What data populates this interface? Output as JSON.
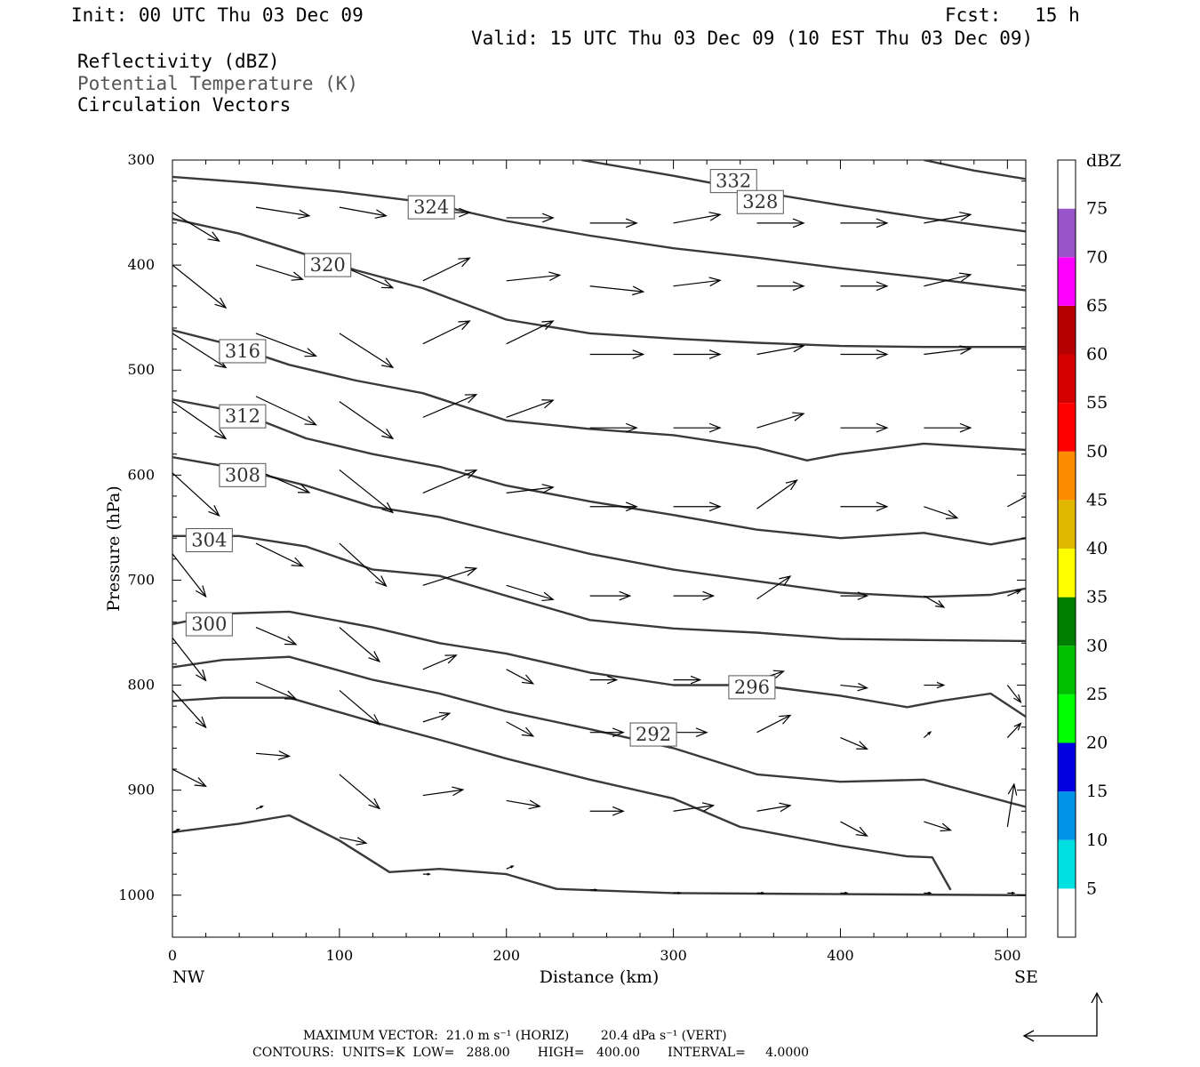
{
  "header": {
    "init": "Init: 00 UTC Thu 03 Dec 09",
    "fcst": "Fcst:   15 h",
    "valid": "Valid: 15 UTC Thu 03 Dec 09 (10 EST Thu 03 Dec 09)",
    "fields": [
      "Reflectivity (dBZ)",
      "Potential Temperature (K)",
      "Circulation Vectors"
    ]
  },
  "footer": {
    "max_vector": "MAXIMUM VECTOR:  21.0 m s⁻¹ (HORIZ)        20.4 dPa s⁻¹ (VERT)",
    "contours": "CONTOURS:  UNITS=K  LOW=   288.00       HIGH=   400.00       INTERVAL=     4.0000"
  },
  "colorbar": {
    "unit": "dBZ",
    "levels": [
      5,
      10,
      15,
      20,
      25,
      30,
      35,
      40,
      45,
      50,
      55,
      60,
      65,
      70,
      75
    ],
    "colors": [
      "#ffffff",
      "#00e0e0",
      "#0095e8",
      "#0000e0",
      "#00ff00",
      "#00c000",
      "#008000",
      "#ffff00",
      "#e0b800",
      "#ff8c00",
      "#ff0000",
      "#d40000",
      "#b40000",
      "#ff00ff",
      "#9955cc",
      "#ffffff"
    ]
  },
  "chart_data": {
    "type": "line",
    "title": "Reflectivity (dBZ), Potential Temperature (K), Circulation Vectors",
    "xlabel": "Distance (km)",
    "ylabel": "Pressure (hPa)",
    "xlim": [
      0,
      511
    ],
    "ylim": [
      1040,
      300
    ],
    "x_ticks": [
      0,
      100,
      200,
      300,
      400,
      500
    ],
    "y_ticks": [
      300,
      400,
      500,
      600,
      700,
      800,
      900,
      1000
    ],
    "x_end_labels": {
      "left": "NW",
      "right": "SE"
    },
    "contours": [
      {
        "level": "332",
        "label_at": [
          336,
          320
        ],
        "points": [
          [
            245,
            300
          ],
          [
            300,
            315
          ],
          [
            350,
            330
          ],
          [
            400,
            343
          ],
          [
            450,
            355
          ],
          [
            511,
            368
          ]
        ]
      },
      {
        "level": "",
        "label_at": null,
        "points": [
          [
            450,
            300
          ],
          [
            480,
            310
          ],
          [
            511,
            318
          ]
        ]
      },
      {
        "level": "328",
        "label_at": [
          352,
          340
        ],
        "points": [
          [
            0,
            316
          ],
          [
            50,
            322
          ],
          [
            100,
            330
          ],
          [
            150,
            340
          ],
          [
            200,
            358
          ],
          [
            250,
            372
          ],
          [
            300,
            384
          ],
          [
            350,
            393
          ],
          [
            400,
            403
          ],
          [
            450,
            412
          ],
          [
            511,
            424
          ]
        ]
      },
      {
        "level": "324",
        "label_at": [
          155,
          345
        ],
        "points": [
          [
            0,
            356
          ],
          [
            40,
            370
          ],
          [
            80,
            390
          ],
          [
            110,
            405
          ],
          [
            150,
            422
          ],
          [
            200,
            452
          ],
          [
            250,
            465
          ],
          [
            300,
            470
          ],
          [
            350,
            474
          ],
          [
            400,
            477
          ],
          [
            450,
            478
          ],
          [
            511,
            478
          ]
        ]
      },
      {
        "level": "320",
        "label_at": [
          93,
          400
        ],
        "points": [
          [
            0,
            462
          ],
          [
            30,
            474
          ],
          [
            70,
            495
          ],
          [
            110,
            510
          ],
          [
            150,
            522
          ],
          [
            200,
            548
          ],
          [
            250,
            556
          ],
          [
            300,
            562
          ],
          [
            350,
            574
          ],
          [
            380,
            586
          ],
          [
            400,
            580
          ],
          [
            450,
            570
          ],
          [
            511,
            576
          ]
        ]
      },
      {
        "level": "316",
        "label_at": [
          42,
          482
        ],
        "points": [
          [
            0,
            528
          ],
          [
            40,
            540
          ],
          [
            80,
            565
          ],
          [
            120,
            580
          ],
          [
            160,
            592
          ],
          [
            200,
            610
          ],
          [
            250,
            625
          ],
          [
            300,
            638
          ],
          [
            350,
            652
          ],
          [
            400,
            660
          ],
          [
            450,
            655
          ],
          [
            490,
            666
          ],
          [
            511,
            660
          ]
        ]
      },
      {
        "level": "312",
        "label_at": [
          42,
          544
        ],
        "points": [
          [
            0,
            583
          ],
          [
            40,
            594
          ],
          [
            80,
            610
          ],
          [
            120,
            630
          ],
          [
            160,
            640
          ],
          [
            200,
            656
          ],
          [
            250,
            675
          ],
          [
            300,
            690
          ],
          [
            350,
            701
          ],
          [
            400,
            712
          ],
          [
            450,
            716
          ],
          [
            490,
            714
          ],
          [
            511,
            708
          ]
        ]
      },
      {
        "level": "308",
        "label_at": [
          42,
          600
        ],
        "points": [
          [
            0,
            658
          ],
          [
            40,
            658
          ],
          [
            80,
            668
          ],
          [
            120,
            690
          ],
          [
            160,
            696
          ],
          [
            200,
            715
          ],
          [
            250,
            738
          ],
          [
            300,
            746
          ],
          [
            350,
            750
          ],
          [
            400,
            756
          ],
          [
            450,
            757
          ],
          [
            511,
            758
          ]
        ]
      },
      {
        "level": "304",
        "label_at": [
          22,
          662
        ],
        "points": [
          [
            0,
            742
          ],
          [
            30,
            732
          ],
          [
            70,
            730
          ],
          [
            120,
            745
          ],
          [
            160,
            760
          ],
          [
            200,
            770
          ],
          [
            250,
            788
          ],
          [
            300,
            800
          ],
          [
            350,
            800
          ],
          [
            400,
            810
          ],
          [
            440,
            821
          ],
          [
            460,
            815
          ],
          [
            490,
            808
          ],
          [
            511,
            830
          ]
        ]
      },
      {
        "level": "300",
        "label_at": [
          22,
          742
        ],
        "points": [
          [
            0,
            783
          ],
          [
            30,
            776
          ],
          [
            70,
            773
          ],
          [
            120,
            795
          ],
          [
            160,
            808
          ],
          [
            200,
            825
          ],
          [
            250,
            842
          ],
          [
            300,
            860
          ],
          [
            350,
            885
          ],
          [
            400,
            892
          ],
          [
            450,
            890
          ],
          [
            511,
            916
          ]
        ]
      },
      {
        "level": "296",
        "label_at": [
          347,
          802
        ],
        "points": [
          [
            0,
            815
          ],
          [
            30,
            812
          ],
          [
            70,
            812
          ],
          [
            120,
            835
          ],
          [
            160,
            852
          ],
          [
            200,
            870
          ],
          [
            250,
            890
          ],
          [
            300,
            908
          ],
          [
            340,
            935
          ],
          [
            400,
            953
          ],
          [
            440,
            963
          ],
          [
            455,
            964
          ],
          [
            466,
            995
          ]
        ]
      },
      {
        "level": "292",
        "label_at": [
          288,
          847
        ],
        "points": [
          [
            0,
            940
          ],
          [
            40,
            932
          ],
          [
            70,
            924
          ],
          [
            100,
            948
          ],
          [
            130,
            978
          ],
          [
            160,
            975
          ],
          [
            200,
            980
          ],
          [
            230,
            994
          ],
          [
            300,
            998
          ],
          [
            400,
            999
          ],
          [
            511,
            1000
          ]
        ]
      }
    ],
    "vectors": [
      {
        "x": 0,
        "p": 350,
        "u": 7,
        "w": 10
      },
      {
        "x": 50,
        "p": 345,
        "u": 8,
        "w": 3
      },
      {
        "x": 100,
        "p": 345,
        "u": 7,
        "w": 3
      },
      {
        "x": 150,
        "p": 350,
        "u": 7,
        "w": 0
      },
      {
        "x": 200,
        "p": 355,
        "u": 7,
        "w": 0
      },
      {
        "x": 250,
        "p": 360,
        "u": 7,
        "w": 0
      },
      {
        "x": 300,
        "p": 360,
        "u": 7,
        "w": -3
      },
      {
        "x": 350,
        "p": 360,
        "u": 7,
        "w": 0
      },
      {
        "x": 400,
        "p": 360,
        "u": 7,
        "w": 0
      },
      {
        "x": 450,
        "p": 360,
        "u": 7,
        "w": -3
      },
      {
        "x": 0,
        "p": 400,
        "u": 8,
        "w": 15
      },
      {
        "x": 50,
        "p": 400,
        "u": 7,
        "w": 5
      },
      {
        "x": 100,
        "p": 400,
        "u": 8,
        "w": 8
      },
      {
        "x": 150,
        "p": 415,
        "u": 7,
        "w": -8
      },
      {
        "x": 200,
        "p": 415,
        "u": 8,
        "w": -2
      },
      {
        "x": 250,
        "p": 420,
        "u": 8,
        "w": 2
      },
      {
        "x": 300,
        "p": 420,
        "u": 7,
        "w": -2
      },
      {
        "x": 350,
        "p": 420,
        "u": 7,
        "w": 0
      },
      {
        "x": 400,
        "p": 420,
        "u": 7,
        "w": 0
      },
      {
        "x": 450,
        "p": 420,
        "u": 7,
        "w": -4
      },
      {
        "x": 0,
        "p": 465,
        "u": 8,
        "w": 12
      },
      {
        "x": 50,
        "p": 465,
        "u": 9,
        "w": 8
      },
      {
        "x": 100,
        "p": 465,
        "u": 8,
        "w": 12
      },
      {
        "x": 150,
        "p": 475,
        "u": 7,
        "w": -8
      },
      {
        "x": 200,
        "p": 475,
        "u": 7,
        "w": -8
      },
      {
        "x": 250,
        "p": 485,
        "u": 8,
        "w": 0
      },
      {
        "x": 300,
        "p": 485,
        "u": 7,
        "w": 0
      },
      {
        "x": 350,
        "p": 485,
        "u": 7,
        "w": -3
      },
      {
        "x": 400,
        "p": 485,
        "u": 7,
        "w": 0
      },
      {
        "x": 450,
        "p": 485,
        "u": 7,
        "w": -2
      },
      {
        "x": 0,
        "p": 530,
        "u": 8,
        "w": 13
      },
      {
        "x": 50,
        "p": 525,
        "u": 9,
        "w": 10
      },
      {
        "x": 100,
        "p": 530,
        "u": 8,
        "w": 13
      },
      {
        "x": 150,
        "p": 545,
        "u": 8,
        "w": -8
      },
      {
        "x": 200,
        "p": 545,
        "u": 7,
        "w": -6
      },
      {
        "x": 250,
        "p": 555,
        "u": 7,
        "w": 0
      },
      {
        "x": 300,
        "p": 555,
        "u": 7,
        "w": 0
      },
      {
        "x": 350,
        "p": 555,
        "u": 7,
        "w": -5
      },
      {
        "x": 400,
        "p": 555,
        "u": 7,
        "w": 0
      },
      {
        "x": 450,
        "p": 555,
        "u": 7,
        "w": 0
      },
      {
        "x": 0,
        "p": 598,
        "u": 7,
        "w": 15
      },
      {
        "x": 50,
        "p": 595,
        "u": 8,
        "w": 8
      },
      {
        "x": 100,
        "p": 595,
        "u": 8,
        "w": 15
      },
      {
        "x": 150,
        "p": 617,
        "u": 8,
        "w": -8
      },
      {
        "x": 200,
        "p": 617,
        "u": 7,
        "w": -2
      },
      {
        "x": 250,
        "p": 630,
        "u": 7,
        "w": 0
      },
      {
        "x": 300,
        "p": 630,
        "u": 7,
        "w": 0
      },
      {
        "x": 350,
        "p": 632,
        "u": 6,
        "w": -10
      },
      {
        "x": 400,
        "p": 630,
        "u": 7,
        "w": 0
      },
      {
        "x": 450,
        "p": 630,
        "u": 5,
        "w": 4
      },
      {
        "x": 500,
        "p": 630,
        "u": 4,
        "w": -5
      },
      {
        "x": 0,
        "p": 675,
        "u": 5,
        "w": 15
      },
      {
        "x": 50,
        "p": 665,
        "u": 7,
        "w": 8
      },
      {
        "x": 100,
        "p": 665,
        "u": 7,
        "w": 15
      },
      {
        "x": 150,
        "p": 705,
        "u": 8,
        "w": -6
      },
      {
        "x": 200,
        "p": 705,
        "u": 7,
        "w": 5
      },
      {
        "x": 250,
        "p": 715,
        "u": 6,
        "w": 0
      },
      {
        "x": 300,
        "p": 715,
        "u": 6,
        "w": 0
      },
      {
        "x": 350,
        "p": 718,
        "u": 5,
        "w": -8
      },
      {
        "x": 400,
        "p": 715,
        "u": 4,
        "w": 0
      },
      {
        "x": 450,
        "p": 715,
        "u": 3,
        "w": 4
      },
      {
        "x": 500,
        "p": 715,
        "u": 2,
        "w": -2
      },
      {
        "x": 0,
        "p": 755,
        "u": 5,
        "w": 15
      },
      {
        "x": 50,
        "p": 745,
        "u": 6,
        "w": 6
      },
      {
        "x": 100,
        "p": 745,
        "u": 6,
        "w": 12
      },
      {
        "x": 150,
        "p": 785,
        "u": 5,
        "w": -5
      },
      {
        "x": 200,
        "p": 785,
        "u": 4,
        "w": 5
      },
      {
        "x": 250,
        "p": 795,
        "u": 4,
        "w": 0
      },
      {
        "x": 300,
        "p": 795,
        "u": 4,
        "w": 0
      },
      {
        "x": 350,
        "p": 795,
        "u": 4,
        "w": -3
      },
      {
        "x": 400,
        "p": 800,
        "u": 4,
        "w": 1
      },
      {
        "x": 450,
        "p": 800,
        "u": 3,
        "w": 0
      },
      {
        "x": 500,
        "p": 800,
        "u": 2,
        "w": 6
      },
      {
        "x": 0,
        "p": 805,
        "u": 5,
        "w": 13
      },
      {
        "x": 50,
        "p": 797,
        "u": 6,
        "w": 6
      },
      {
        "x": 100,
        "p": 805,
        "u": 6,
        "w": 12
      },
      {
        "x": 150,
        "p": 835,
        "u": 4,
        "w": -3
      },
      {
        "x": 200,
        "p": 835,
        "u": 4,
        "w": 5
      },
      {
        "x": 250,
        "p": 845,
        "u": 5,
        "w": 0
      },
      {
        "x": 300,
        "p": 845,
        "u": 5,
        "w": 0
      },
      {
        "x": 350,
        "p": 845,
        "u": 5,
        "w": -6
      },
      {
        "x": 400,
        "p": 850,
        "u": 4,
        "w": 4
      },
      {
        "x": 450,
        "p": 850,
        "u": 1,
        "w": -2
      },
      {
        "x": 500,
        "p": 850,
        "u": 2,
        "w": -5
      },
      {
        "x": 0,
        "p": 880,
        "u": 5,
        "w": 6
      },
      {
        "x": 50,
        "p": 865,
        "u": 5,
        "w": 1
      },
      {
        "x": 100,
        "p": 885,
        "u": 6,
        "w": 12
      },
      {
        "x": 150,
        "p": 905,
        "u": 6,
        "w": -2
      },
      {
        "x": 200,
        "p": 910,
        "u": 5,
        "w": 2
      },
      {
        "x": 250,
        "p": 920,
        "u": 5,
        "w": 0
      },
      {
        "x": 300,
        "p": 920,
        "u": 6,
        "w": -2
      },
      {
        "x": 350,
        "p": 920,
        "u": 5,
        "w": -2
      },
      {
        "x": 400,
        "p": 930,
        "u": 4,
        "w": 5
      },
      {
        "x": 450,
        "p": 930,
        "u": 4,
        "w": 3
      },
      {
        "x": 500,
        "p": 935,
        "u": 1,
        "w": -15
      },
      {
        "x": 0,
        "p": 940,
        "u": 1,
        "w": -1
      },
      {
        "x": 50,
        "p": 918,
        "u": 1,
        "w": -1
      },
      {
        "x": 100,
        "p": 945,
        "u": 4,
        "w": 2
      },
      {
        "x": 150,
        "p": 980,
        "u": 1,
        "w": 0
      },
      {
        "x": 200,
        "p": 975,
        "u": 1,
        "w": -1
      },
      {
        "x": 250,
        "p": 995,
        "u": 1,
        "w": 0
      },
      {
        "x": 300,
        "p": 998,
        "u": 1,
        "w": 0
      },
      {
        "x": 350,
        "p": 998,
        "u": 1,
        "w": 0
      },
      {
        "x": 400,
        "p": 998,
        "u": 1,
        "w": 0
      },
      {
        "x": 450,
        "p": 998,
        "u": 1,
        "w": 0
      },
      {
        "x": 500,
        "p": 998,
        "u": 1,
        "w": 0
      }
    ],
    "reference_vector": {
      "horiz": "21.0 m s⁻¹",
      "vert": "20.4 dPa s⁻¹"
    }
  }
}
